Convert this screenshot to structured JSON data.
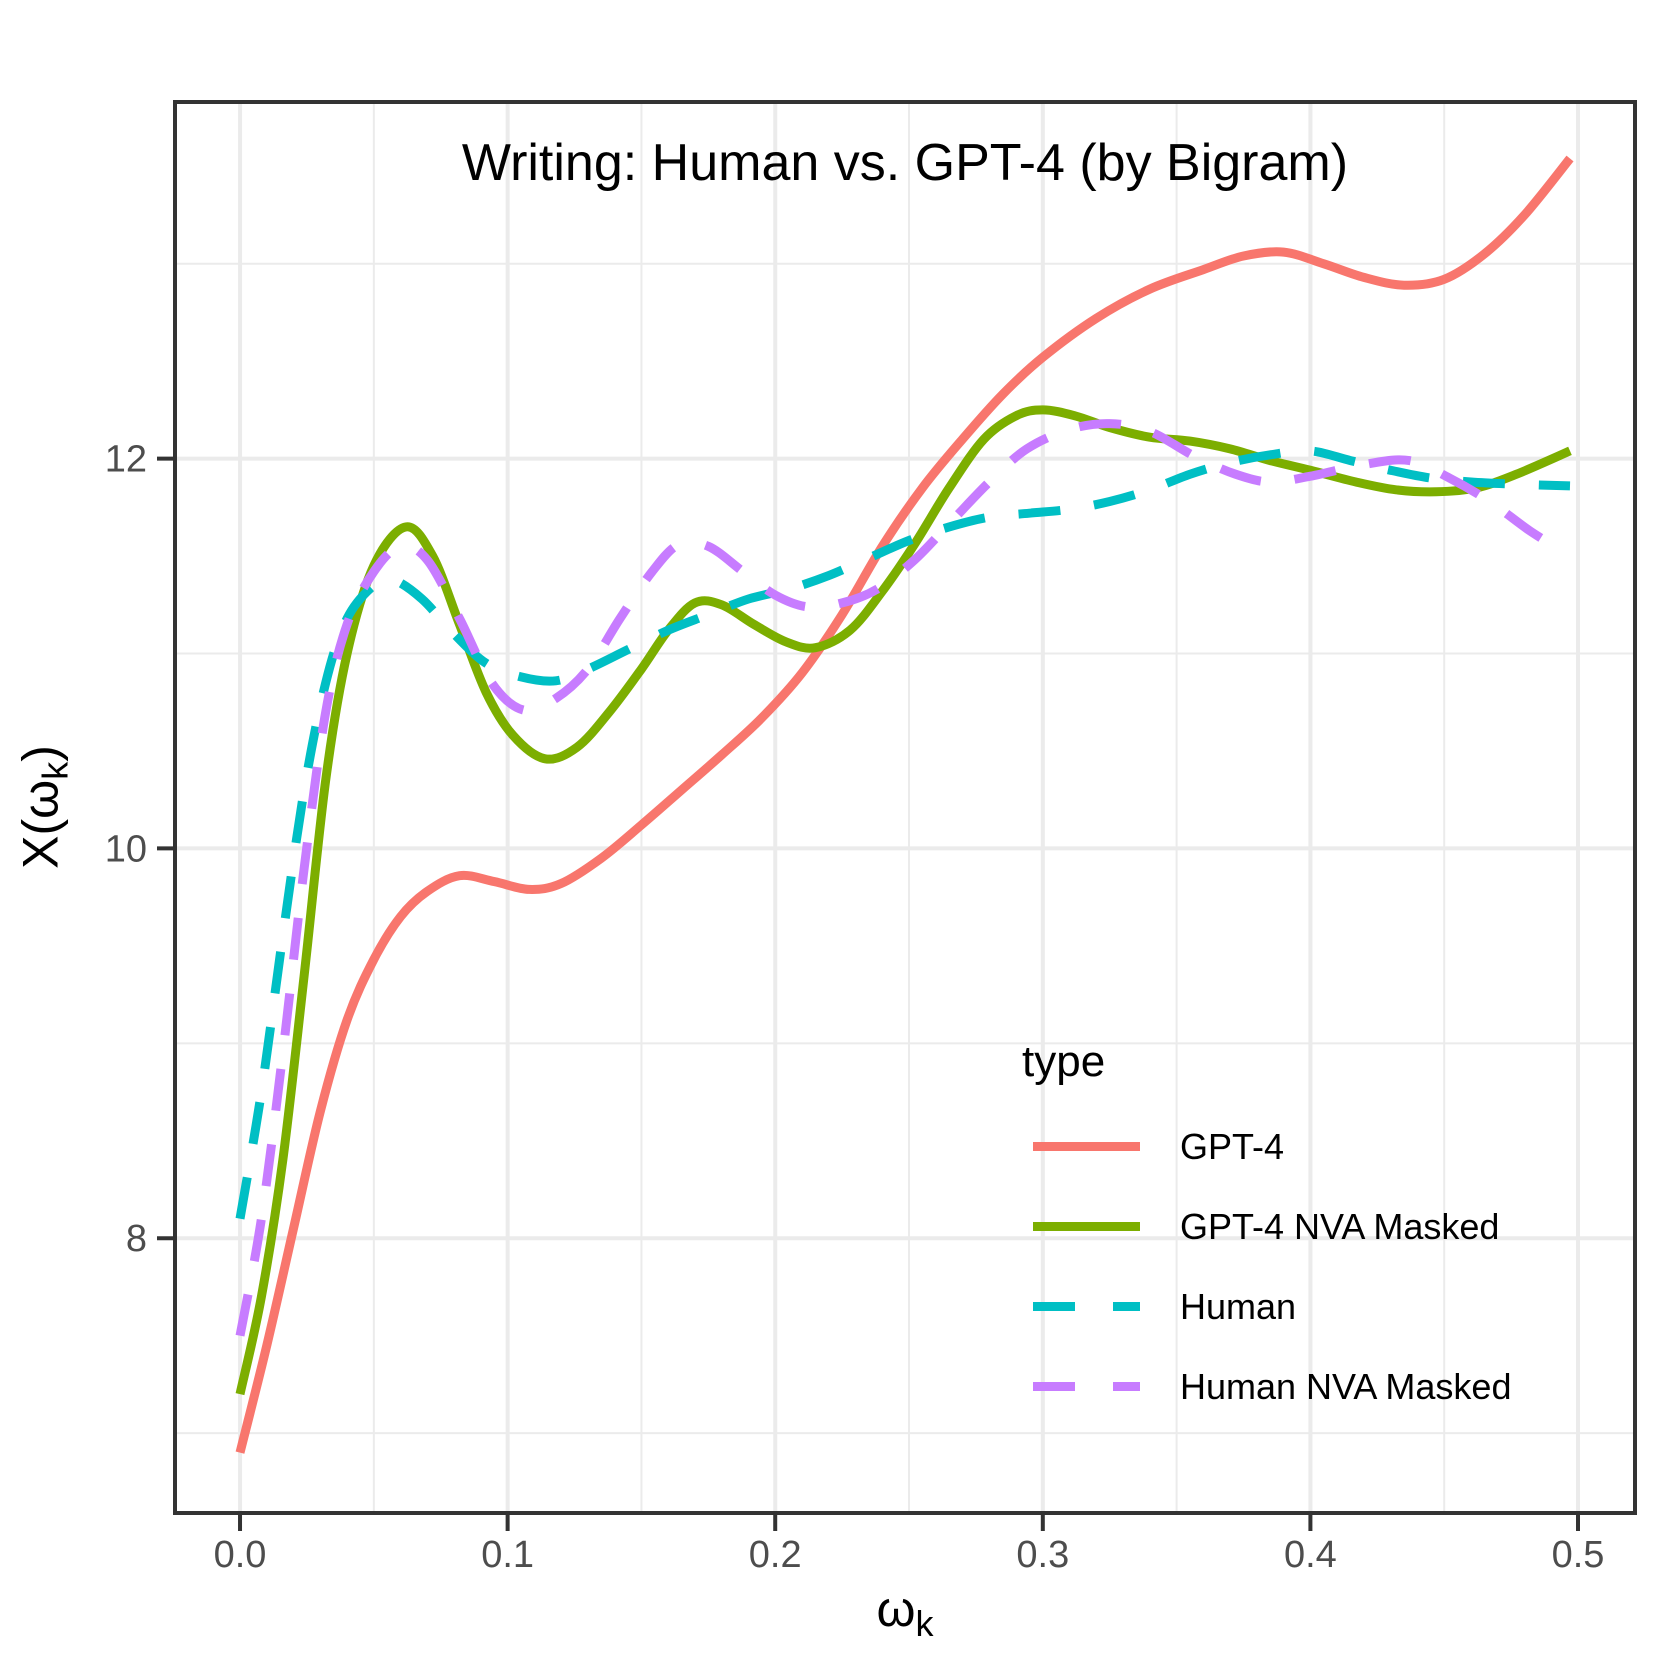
{
  "title": "Writing: Human vs. GPT-4 (by Bigram)",
  "axes": {
    "x_title": {
      "base": "ω",
      "sub": "k"
    },
    "y_title": {
      "pre": "X(",
      "base": "ω",
      "sub": "k",
      "post": ")"
    },
    "x_tick_labels": [
      "0.0",
      "0.1",
      "0.2",
      "0.3",
      "0.4",
      "0.5"
    ],
    "y_tick_labels": [
      "8",
      "10",
      "12"
    ]
  },
  "legend": {
    "title": "type"
  },
  "style_colors": {
    "grid": "#EBEBEB",
    "panel_border": "#333333",
    "tick_mark": "#333333",
    "tick_text": "#4d4d4d"
  },
  "chart_data": {
    "type": "line",
    "title": "Writing: Human vs. GPT-4 (by Bigram)",
    "xlabel": "ω_k",
    "ylabel": "X(ω_k)",
    "legend_title": "type",
    "legend_position": "inside bottom-right",
    "grid": true,
    "x_ticks": [
      0.0,
      0.1,
      0.2,
      0.3,
      0.4,
      0.5
    ],
    "y_ticks": [
      8,
      10,
      12
    ],
    "x_minor_ticks": [
      0.05,
      0.15,
      0.25,
      0.35,
      0.45
    ],
    "y_minor_ticks": [
      7,
      9,
      11,
      13
    ],
    "xlim": [
      -0.0243,
      0.5213
    ],
    "ylim": [
      6.59,
      13.83
    ],
    "series": [
      {
        "name": "GPT-4",
        "color": "#F8766D",
        "dashed": false,
        "points": [
          [
            0.0,
            6.9
          ],
          [
            0.01,
            7.45
          ],
          [
            0.02,
            8.05
          ],
          [
            0.03,
            8.65
          ],
          [
            0.04,
            9.12
          ],
          [
            0.05,
            9.43
          ],
          [
            0.06,
            9.65
          ],
          [
            0.07,
            9.78
          ],
          [
            0.082,
            9.86
          ],
          [
            0.095,
            9.83
          ],
          [
            0.108,
            9.79
          ],
          [
            0.12,
            9.82
          ],
          [
            0.135,
            9.95
          ],
          [
            0.15,
            10.12
          ],
          [
            0.165,
            10.3
          ],
          [
            0.18,
            10.48
          ],
          [
            0.195,
            10.67
          ],
          [
            0.21,
            10.9
          ],
          [
            0.225,
            11.2
          ],
          [
            0.24,
            11.55
          ],
          [
            0.255,
            11.85
          ],
          [
            0.27,
            12.1
          ],
          [
            0.285,
            12.33
          ],
          [
            0.3,
            12.52
          ],
          [
            0.32,
            12.72
          ],
          [
            0.34,
            12.87
          ],
          [
            0.36,
            12.97
          ],
          [
            0.375,
            13.04
          ],
          [
            0.39,
            13.06
          ],
          [
            0.405,
            13.0
          ],
          [
            0.42,
            12.93
          ],
          [
            0.435,
            12.89
          ],
          [
            0.45,
            12.92
          ],
          [
            0.465,
            13.05
          ],
          [
            0.48,
            13.25
          ],
          [
            0.497,
            13.54
          ]
        ]
      },
      {
        "name": "GPT-4 NVA Masked",
        "color": "#7CAE00",
        "dashed": false,
        "points": [
          [
            0.0,
            7.2
          ],
          [
            0.008,
            7.7
          ],
          [
            0.016,
            8.4
          ],
          [
            0.024,
            9.35
          ],
          [
            0.032,
            10.35
          ],
          [
            0.04,
            11.0
          ],
          [
            0.05,
            11.45
          ],
          [
            0.062,
            11.65
          ],
          [
            0.072,
            11.5
          ],
          [
            0.082,
            11.15
          ],
          [
            0.092,
            10.8
          ],
          [
            0.102,
            10.58
          ],
          [
            0.114,
            10.46
          ],
          [
            0.126,
            10.52
          ],
          [
            0.138,
            10.7
          ],
          [
            0.15,
            10.92
          ],
          [
            0.16,
            11.12
          ],
          [
            0.17,
            11.26
          ],
          [
            0.18,
            11.25
          ],
          [
            0.192,
            11.15
          ],
          [
            0.204,
            11.06
          ],
          [
            0.215,
            11.03
          ],
          [
            0.228,
            11.12
          ],
          [
            0.24,
            11.32
          ],
          [
            0.252,
            11.56
          ],
          [
            0.265,
            11.85
          ],
          [
            0.278,
            12.1
          ],
          [
            0.29,
            12.22
          ],
          [
            0.3,
            12.25
          ],
          [
            0.312,
            12.22
          ],
          [
            0.325,
            12.16
          ],
          [
            0.34,
            12.11
          ],
          [
            0.355,
            12.09
          ],
          [
            0.37,
            12.05
          ],
          [
            0.385,
            11.99
          ],
          [
            0.4,
            11.94
          ],
          [
            0.417,
            11.88
          ],
          [
            0.432,
            11.84
          ],
          [
            0.447,
            11.83
          ],
          [
            0.462,
            11.85
          ],
          [
            0.477,
            11.92
          ],
          [
            0.497,
            12.04
          ]
        ]
      },
      {
        "name": "Human",
        "color": "#00BFC4",
        "dashed": true,
        "points": [
          [
            0.0,
            8.1
          ],
          [
            0.008,
            8.75
          ],
          [
            0.016,
            9.55
          ],
          [
            0.024,
            10.3
          ],
          [
            0.032,
            10.85
          ],
          [
            0.04,
            11.18
          ],
          [
            0.05,
            11.35
          ],
          [
            0.057,
            11.38
          ],
          [
            0.068,
            11.28
          ],
          [
            0.08,
            11.1
          ],
          [
            0.092,
            10.95
          ],
          [
            0.105,
            10.88
          ],
          [
            0.118,
            10.86
          ],
          [
            0.13,
            10.92
          ],
          [
            0.145,
            11.02
          ],
          [
            0.16,
            11.12
          ],
          [
            0.175,
            11.2
          ],
          [
            0.19,
            11.28
          ],
          [
            0.205,
            11.33
          ],
          [
            0.22,
            11.4
          ],
          [
            0.235,
            11.49
          ],
          [
            0.25,
            11.58
          ],
          [
            0.265,
            11.65
          ],
          [
            0.28,
            11.7
          ],
          [
            0.295,
            11.72
          ],
          [
            0.31,
            11.74
          ],
          [
            0.325,
            11.78
          ],
          [
            0.34,
            11.84
          ],
          [
            0.355,
            11.92
          ],
          [
            0.37,
            11.98
          ],
          [
            0.385,
            12.02
          ],
          [
            0.4,
            12.04
          ],
          [
            0.415,
            11.99
          ],
          [
            0.43,
            11.94
          ],
          [
            0.445,
            11.9
          ],
          [
            0.46,
            11.88
          ],
          [
            0.475,
            11.87
          ],
          [
            0.497,
            11.86
          ]
        ]
      },
      {
        "name": "Human NVA Masked",
        "color": "#C77CFF",
        "dashed": true,
        "points": [
          [
            0.0,
            7.5
          ],
          [
            0.008,
            8.1
          ],
          [
            0.016,
            8.95
          ],
          [
            0.024,
            9.9
          ],
          [
            0.032,
            10.7
          ],
          [
            0.04,
            11.15
          ],
          [
            0.05,
            11.42
          ],
          [
            0.06,
            11.55
          ],
          [
            0.07,
            11.48
          ],
          [
            0.082,
            11.18
          ],
          [
            0.094,
            10.85
          ],
          [
            0.106,
            10.71
          ],
          [
            0.118,
            10.77
          ],
          [
            0.13,
            10.92
          ],
          [
            0.142,
            11.18
          ],
          [
            0.154,
            11.42
          ],
          [
            0.164,
            11.56
          ],
          [
            0.175,
            11.55
          ],
          [
            0.188,
            11.42
          ],
          [
            0.2,
            11.3
          ],
          [
            0.212,
            11.24
          ],
          [
            0.225,
            11.26
          ],
          [
            0.238,
            11.33
          ],
          [
            0.252,
            11.48
          ],
          [
            0.266,
            11.68
          ],
          [
            0.28,
            11.88
          ],
          [
            0.294,
            12.05
          ],
          [
            0.31,
            12.15
          ],
          [
            0.325,
            12.18
          ],
          [
            0.34,
            12.14
          ],
          [
            0.357,
            12.01
          ],
          [
            0.372,
            11.92
          ],
          [
            0.385,
            11.88
          ],
          [
            0.4,
            11.91
          ],
          [
            0.42,
            11.97
          ],
          [
            0.437,
            11.99
          ],
          [
            0.452,
            11.9
          ],
          [
            0.467,
            11.78
          ],
          [
            0.482,
            11.63
          ],
          [
            0.495,
            11.52
          ]
        ]
      }
    ]
  }
}
